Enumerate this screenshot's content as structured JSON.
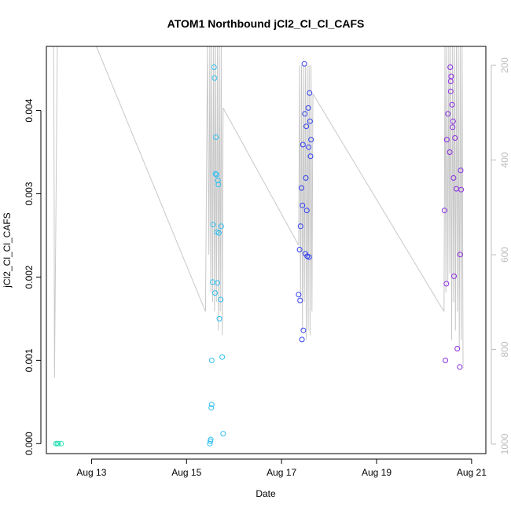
{
  "chart_data": {
    "type": "scatter",
    "title": "ATOM1 Northbound jCl2_Cl_Cl_CAFS",
    "xlabel": "Date",
    "ylabel": "jCl2_Cl_Cl_CAFS",
    "x_ticks": [
      {
        "day": 13,
        "label": "Aug 13"
      },
      {
        "day": 15,
        "label": "Aug 15"
      },
      {
        "day": 17,
        "label": "Aug 17"
      },
      {
        "day": 19,
        "label": "Aug 19"
      },
      {
        "day": 21,
        "label": "Aug 21"
      }
    ],
    "y_ticks": [
      "0.000",
      "0.001",
      "0.002",
      "0.003",
      "0.004"
    ],
    "y_tick_values": [
      0.0,
      0.001,
      0.002,
      0.003,
      0.004
    ],
    "y2_ticks": [
      "200",
      "400",
      "600",
      "800",
      "1000"
    ],
    "y2_tick_values": [
      200,
      400,
      600,
      800,
      1000
    ],
    "xlim": [
      12.05,
      21.3
    ],
    "ylim": [
      -0.00012,
      0.00477
    ],
    "y2lim": [
      1020,
      160
    ],
    "y2_reversed": true,
    "grid": false,
    "legend": "none",
    "point_colors": [
      "#2fe0b5",
      "#33bff0",
      "#2f3ff0",
      "#8a2be2"
    ],
    "series": [
      {
        "color": "#2fe0b5",
        "points": [
          [
            12.25,
            0.0
          ],
          [
            12.28,
            0.0
          ],
          [
            12.3,
            0.0
          ],
          [
            12.36,
            0.0
          ]
        ]
      },
      {
        "color": "#33bff0",
        "points": [
          [
            15.49,
            0.0
          ],
          [
            15.5,
            3e-05
          ],
          [
            15.51,
            5e-05
          ],
          [
            15.52,
            0.00043
          ],
          [
            15.53,
            0.00047
          ],
          [
            15.53,
            0.001
          ],
          [
            15.55,
            0.00194
          ],
          [
            15.56,
            0.00263
          ],
          [
            15.58,
            0.00452
          ],
          [
            15.59,
            0.00439
          ],
          [
            15.6,
            0.00181
          ],
          [
            15.61,
            0.00324
          ],
          [
            15.62,
            0.00368
          ],
          [
            15.63,
            0.00323
          ],
          [
            15.64,
            0.00254
          ],
          [
            15.65,
            0.00193
          ],
          [
            15.66,
            0.00316
          ],
          [
            15.67,
            0.00311
          ],
          [
            15.68,
            0.00253
          ],
          [
            15.69,
            0.0015
          ],
          [
            15.72,
            0.00173
          ],
          [
            15.73,
            0.00261
          ],
          [
            15.75,
            0.00104
          ],
          [
            15.77,
            0.00012
          ]
        ]
      },
      {
        "color": "#2f3ff0",
        "points": [
          [
            17.36,
            0.00179
          ],
          [
            17.38,
            0.00233
          ],
          [
            17.39,
            0.00172
          ],
          [
            17.4,
            0.00261
          ],
          [
            17.42,
            0.00307
          ],
          [
            17.43,
            0.00125
          ],
          [
            17.44,
            0.00286
          ],
          [
            17.45,
            0.00359
          ],
          [
            17.46,
            0.00136
          ],
          [
            17.48,
            0.00456
          ],
          [
            17.49,
            0.00396
          ],
          [
            17.5,
            0.00228
          ],
          [
            17.51,
            0.00319
          ],
          [
            17.52,
            0.00381
          ],
          [
            17.53,
            0.0028
          ],
          [
            17.54,
            0.00225
          ],
          [
            17.56,
            0.00403
          ],
          [
            17.57,
            0.00356
          ],
          [
            17.58,
            0.00224
          ],
          [
            17.59,
            0.00421
          ],
          [
            17.6,
            0.00387
          ],
          [
            17.61,
            0.00345
          ],
          [
            17.62,
            0.00365
          ]
        ]
      },
      {
        "color": "#8a2be2",
        "points": [
          [
            20.43,
            0.0028
          ],
          [
            20.45,
            0.001
          ],
          [
            20.47,
            0.00192
          ],
          [
            20.48,
            0.00365
          ],
          [
            20.5,
            0.00396
          ],
          [
            20.54,
            0.0035
          ],
          [
            20.55,
            0.00452
          ],
          [
            20.56,
            0.00435
          ],
          [
            20.56,
            0.00423
          ],
          [
            20.57,
            0.00441
          ],
          [
            20.59,
            0.00407
          ],
          [
            20.6,
            0.0038
          ],
          [
            20.61,
            0.00387
          ],
          [
            20.62,
            0.00319
          ],
          [
            20.63,
            0.00201
          ],
          [
            20.65,
            0.00367
          ],
          [
            20.68,
            0.00306
          ],
          [
            20.7,
            0.00114
          ],
          [
            20.75,
            0.00092
          ],
          [
            20.76,
            0.00227
          ],
          [
            20.77,
            0.00328
          ],
          [
            20.78,
            0.00305
          ]
        ]
      }
    ],
    "altitude": {
      "color": "#c8c8c8",
      "axis": "right",
      "segments": [
        [
          [
            12.2,
            160
          ],
          [
            12.21,
            360
          ],
          [
            12.22,
            860
          ],
          [
            12.26,
            400
          ],
          [
            12.28,
            160
          ]
        ],
        [
          [
            13.1,
            160
          ],
          [
            15.4,
            720
          ]
        ],
        [
          [
            15.4,
            720
          ],
          [
            15.44,
            160
          ],
          [
            15.47,
            600
          ],
          [
            15.49,
            160
          ],
          [
            15.51,
            680
          ],
          [
            15.53,
            160
          ],
          [
            15.55,
            700
          ],
          [
            15.57,
            160
          ],
          [
            15.59,
            720
          ],
          [
            15.61,
            160
          ],
          [
            15.63,
            700
          ],
          [
            15.65,
            160
          ],
          [
            15.67,
            760
          ],
          [
            15.69,
            160
          ],
          [
            15.71,
            720
          ],
          [
            15.73,
            160
          ],
          [
            15.75,
            770
          ],
          [
            15.77,
            290
          ]
        ],
        [
          [
            15.77,
            290
          ],
          [
            17.36,
            580
          ]
        ],
        [
          [
            17.36,
            580
          ],
          [
            17.38,
            200
          ],
          [
            17.4,
            690
          ],
          [
            17.42,
            200
          ],
          [
            17.44,
            760
          ],
          [
            17.46,
            200
          ],
          [
            17.48,
            700
          ],
          [
            17.5,
            200
          ],
          [
            17.52,
            780
          ],
          [
            17.54,
            200
          ],
          [
            17.56,
            760
          ],
          [
            17.58,
            200
          ],
          [
            17.6,
            770
          ],
          [
            17.62,
            200
          ],
          [
            17.64,
            720
          ],
          [
            17.66,
            260
          ]
        ],
        [
          [
            17.66,
            260
          ],
          [
            20.42,
            720
          ]
        ],
        [
          [
            20.42,
            720
          ],
          [
            20.44,
            160
          ],
          [
            20.46,
            680
          ],
          [
            20.48,
            160
          ],
          [
            20.5,
            660
          ],
          [
            20.52,
            160
          ],
          [
            20.54,
            640
          ],
          [
            20.56,
            160
          ],
          [
            20.58,
            780
          ],
          [
            20.6,
            160
          ],
          [
            20.62,
            700
          ],
          [
            20.64,
            160
          ],
          [
            20.66,
            760
          ],
          [
            20.68,
            160
          ],
          [
            20.7,
            720
          ],
          [
            20.72,
            160
          ],
          [
            20.74,
            800
          ],
          [
            20.76,
            160
          ],
          [
            20.78,
            780
          ],
          [
            20.8,
            160
          ],
          [
            20.82,
            840
          ]
        ]
      ]
    }
  }
}
